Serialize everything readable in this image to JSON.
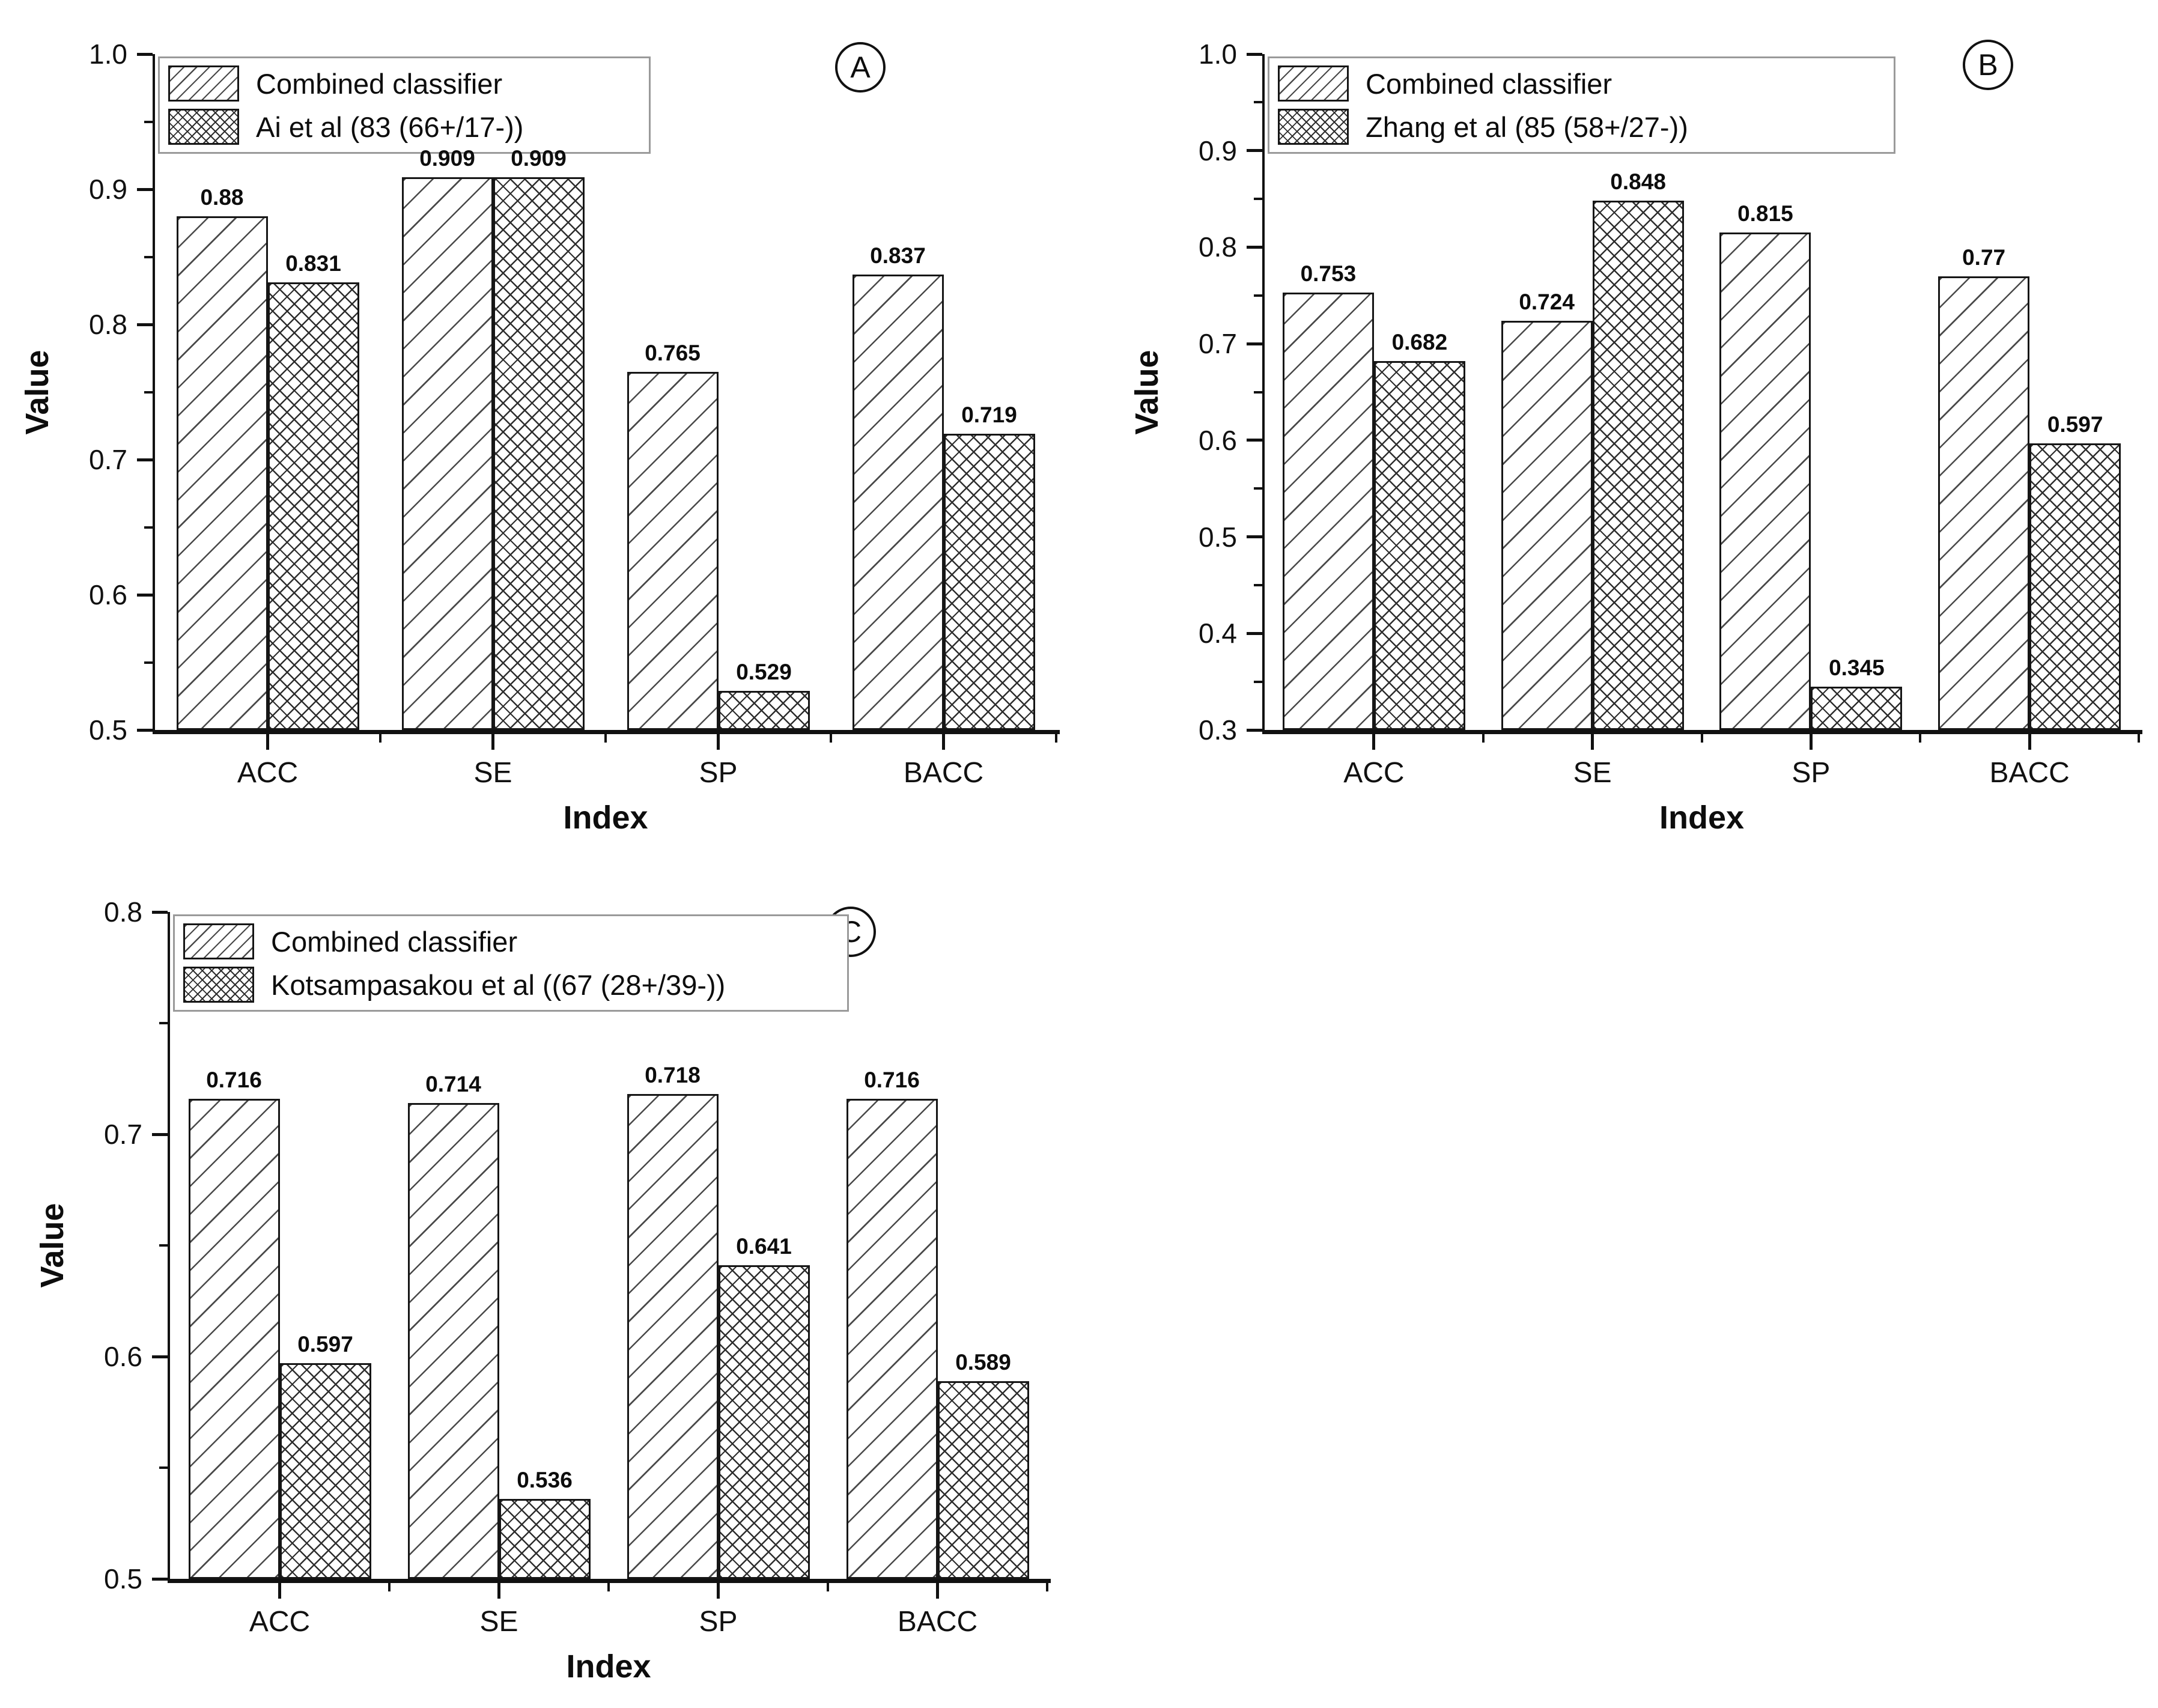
{
  "colors": {
    "ink": "#111111",
    "legend_border": "#9a9a9a"
  },
  "chart_data": [
    {
      "type": "bar",
      "panel": "A",
      "xlabel": "Index",
      "ylabel": "Value",
      "categories": [
        "ACC",
        "SE",
        "SP",
        "BACC"
      ],
      "series": [
        {
          "name": "Combined classifier",
          "pattern": "diagonal",
          "values": [
            0.88,
            0.909,
            0.765,
            0.837
          ],
          "value_labels": [
            "0.88",
            "0.909",
            "0.765",
            "0.837"
          ]
        },
        {
          "name": "Ai et al (83 (66+/17-))",
          "pattern": "crosshatch",
          "values": [
            0.831,
            0.909,
            0.529,
            0.719
          ],
          "value_labels": [
            "0.831",
            "0.909",
            "0.529",
            "0.719"
          ]
        }
      ],
      "ylim": [
        0.5,
        1.0
      ],
      "yticks": [
        "1.0",
        "0.9",
        "0.8",
        "0.7",
        "0.6",
        "0.5"
      ],
      "legend_position": "top-left",
      "grid": false
    },
    {
      "type": "bar",
      "panel": "B",
      "xlabel": "Index",
      "ylabel": "Value",
      "categories": [
        "ACC",
        "SE",
        "SP",
        "BACC"
      ],
      "series": [
        {
          "name": "Combined classifier",
          "pattern": "diagonal",
          "values": [
            0.753,
            0.724,
            0.815,
            0.77
          ],
          "value_labels": [
            "0.753",
            "0.724",
            "0.815",
            "0.77"
          ]
        },
        {
          "name": "Zhang et al (85 (58+/27-))",
          "pattern": "crosshatch",
          "values": [
            0.682,
            0.848,
            0.345,
            0.597
          ],
          "value_labels": [
            "0.682",
            "0.848",
            "0.345",
            "0.597"
          ]
        }
      ],
      "ylim": [
        0.3,
        1.0
      ],
      "yticks": [
        "1.0",
        "0.9",
        "0.8",
        "0.7",
        "0.6",
        "0.5",
        "0.4",
        "0.3"
      ],
      "legend_position": "top-left",
      "grid": false
    },
    {
      "type": "bar",
      "panel": "C",
      "xlabel": "Index",
      "ylabel": "Value",
      "categories": [
        "ACC",
        "SE",
        "SP",
        "BACC"
      ],
      "series": [
        {
          "name": "Combined classifier",
          "pattern": "diagonal",
          "values": [
            0.716,
            0.714,
            0.718,
            0.716
          ],
          "value_labels": [
            "0.716",
            "0.714",
            "0.718",
            "0.716"
          ]
        },
        {
          "name": "Kotsampasakou et al ((67 (28+/39-))",
          "pattern": "crosshatch",
          "values": [
            0.597,
            0.536,
            0.641,
            0.589
          ],
          "value_labels": [
            "0.597",
            "0.536",
            "0.641",
            "0.589"
          ]
        }
      ],
      "ylim": [
        0.5,
        0.8
      ],
      "yticks": [
        "0.8",
        "0.7",
        "0.6",
        "0.5"
      ],
      "legend_position": "top-left",
      "grid": false
    }
  ]
}
